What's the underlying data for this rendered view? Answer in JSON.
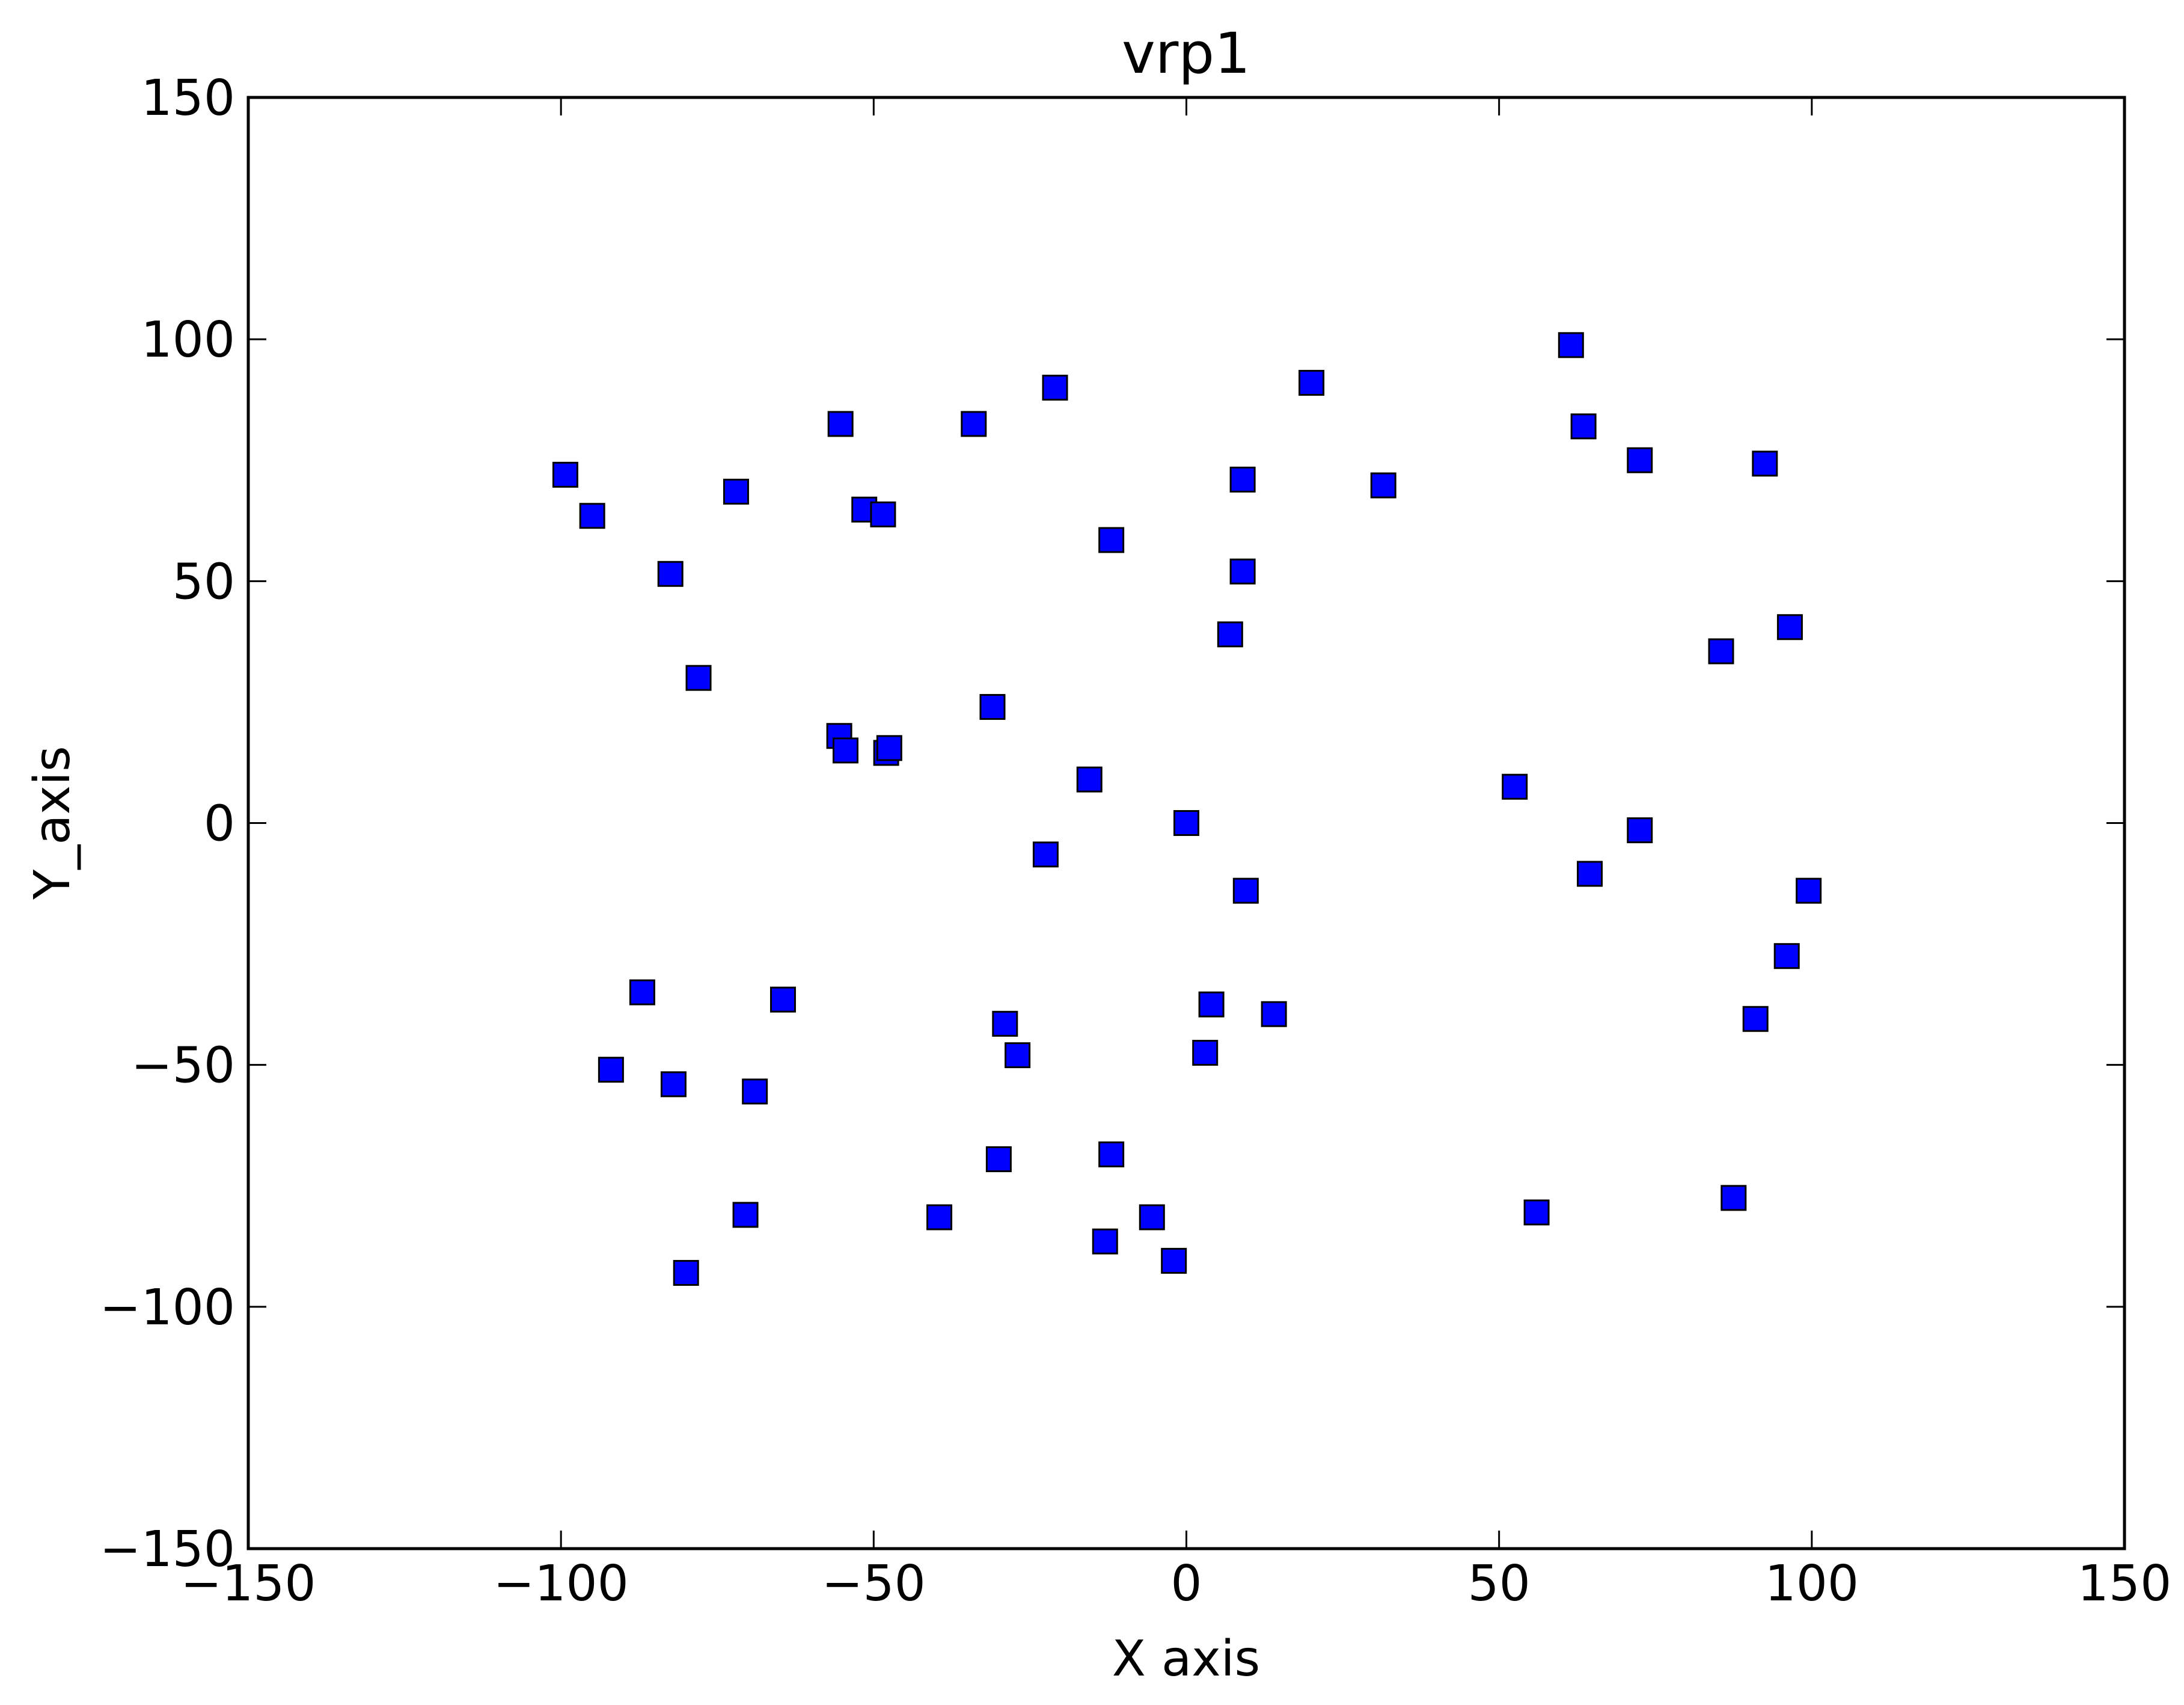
{
  "chart_data": {
    "type": "scatter",
    "title": "vrp1",
    "xlabel": "X axis",
    "ylabel": "Y_axis",
    "xlim": [
      -150,
      150
    ],
    "ylim": [
      -150,
      150
    ],
    "xticks": [
      -150,
      -100,
      -50,
      0,
      50,
      100,
      150
    ],
    "yticks": [
      -150,
      -100,
      -50,
      0,
      50,
      100,
      150
    ],
    "xtick_labels": [
      "−150",
      "−100",
      "−50",
      "0",
      "50",
      "100",
      "150"
    ],
    "ytick_labels": [
      "−150",
      "−100",
      "−50",
      "0",
      "50",
      "100",
      "150"
    ],
    "grid": false,
    "marker": "square",
    "marker_color": "#0000ff",
    "marker_edge_color": "#000000",
    "series": [
      {
        "points": [
          [
            -99.3,
            72.0
          ],
          [
            -95.0,
            63.5
          ],
          [
            -82.5,
            51.5
          ],
          [
            -78.0,
            30.0
          ],
          [
            -72.0,
            68.5
          ],
          [
            -55.3,
            82.5
          ],
          [
            -51.5,
            64.8
          ],
          [
            -48.5,
            63.8
          ],
          [
            -34.0,
            82.5
          ],
          [
            -21.0,
            90.0
          ],
          [
            -55.5,
            18.0
          ],
          [
            -54.5,
            15.0
          ],
          [
            -48.0,
            14.5
          ],
          [
            -47.5,
            15.5
          ],
          [
            -31.0,
            24.0
          ],
          [
            -15.5,
            9.0
          ],
          [
            -12.0,
            58.5
          ],
          [
            -22.5,
            -6.5
          ],
          [
            0.0,
            0.0
          ],
          [
            7.0,
            39.0
          ],
          [
            9.0,
            71.0
          ],
          [
            9.0,
            52.0
          ],
          [
            20.0,
            91.0
          ],
          [
            31.5,
            69.8
          ],
          [
            9.5,
            -14.0
          ],
          [
            61.5,
            98.8
          ],
          [
            63.5,
            82.0
          ],
          [
            72.5,
            75.0
          ],
          [
            92.5,
            74.3
          ],
          [
            85.5,
            35.5
          ],
          [
            96.5,
            40.5
          ],
          [
            52.5,
            7.5
          ],
          [
            72.5,
            -1.5
          ],
          [
            64.5,
            -10.5
          ],
          [
            99.5,
            -14.0
          ],
          [
            96.0,
            -27.5
          ],
          [
            91.0,
            -40.5
          ],
          [
            -87.0,
            -35.0
          ],
          [
            -92.0,
            -51.0
          ],
          [
            -82.0,
            -54.0
          ],
          [
            -69.0,
            -55.5
          ],
          [
            -64.5,
            -36.5
          ],
          [
            -29.0,
            -41.5
          ],
          [
            -27.0,
            -48.0
          ],
          [
            4.0,
            -37.5
          ],
          [
            14.0,
            -39.5
          ],
          [
            3.0,
            -47.5
          ],
          [
            -30.0,
            -69.5
          ],
          [
            -12.0,
            -68.5
          ],
          [
            -70.5,
            -81.0
          ],
          [
            -80.0,
            -93.0
          ],
          [
            -39.5,
            -81.5
          ],
          [
            -13.0,
            -86.5
          ],
          [
            -5.5,
            -81.5
          ],
          [
            -2.0,
            -90.5
          ],
          [
            56.0,
            -80.5
          ],
          [
            87.5,
            -77.5
          ]
        ]
      }
    ]
  }
}
